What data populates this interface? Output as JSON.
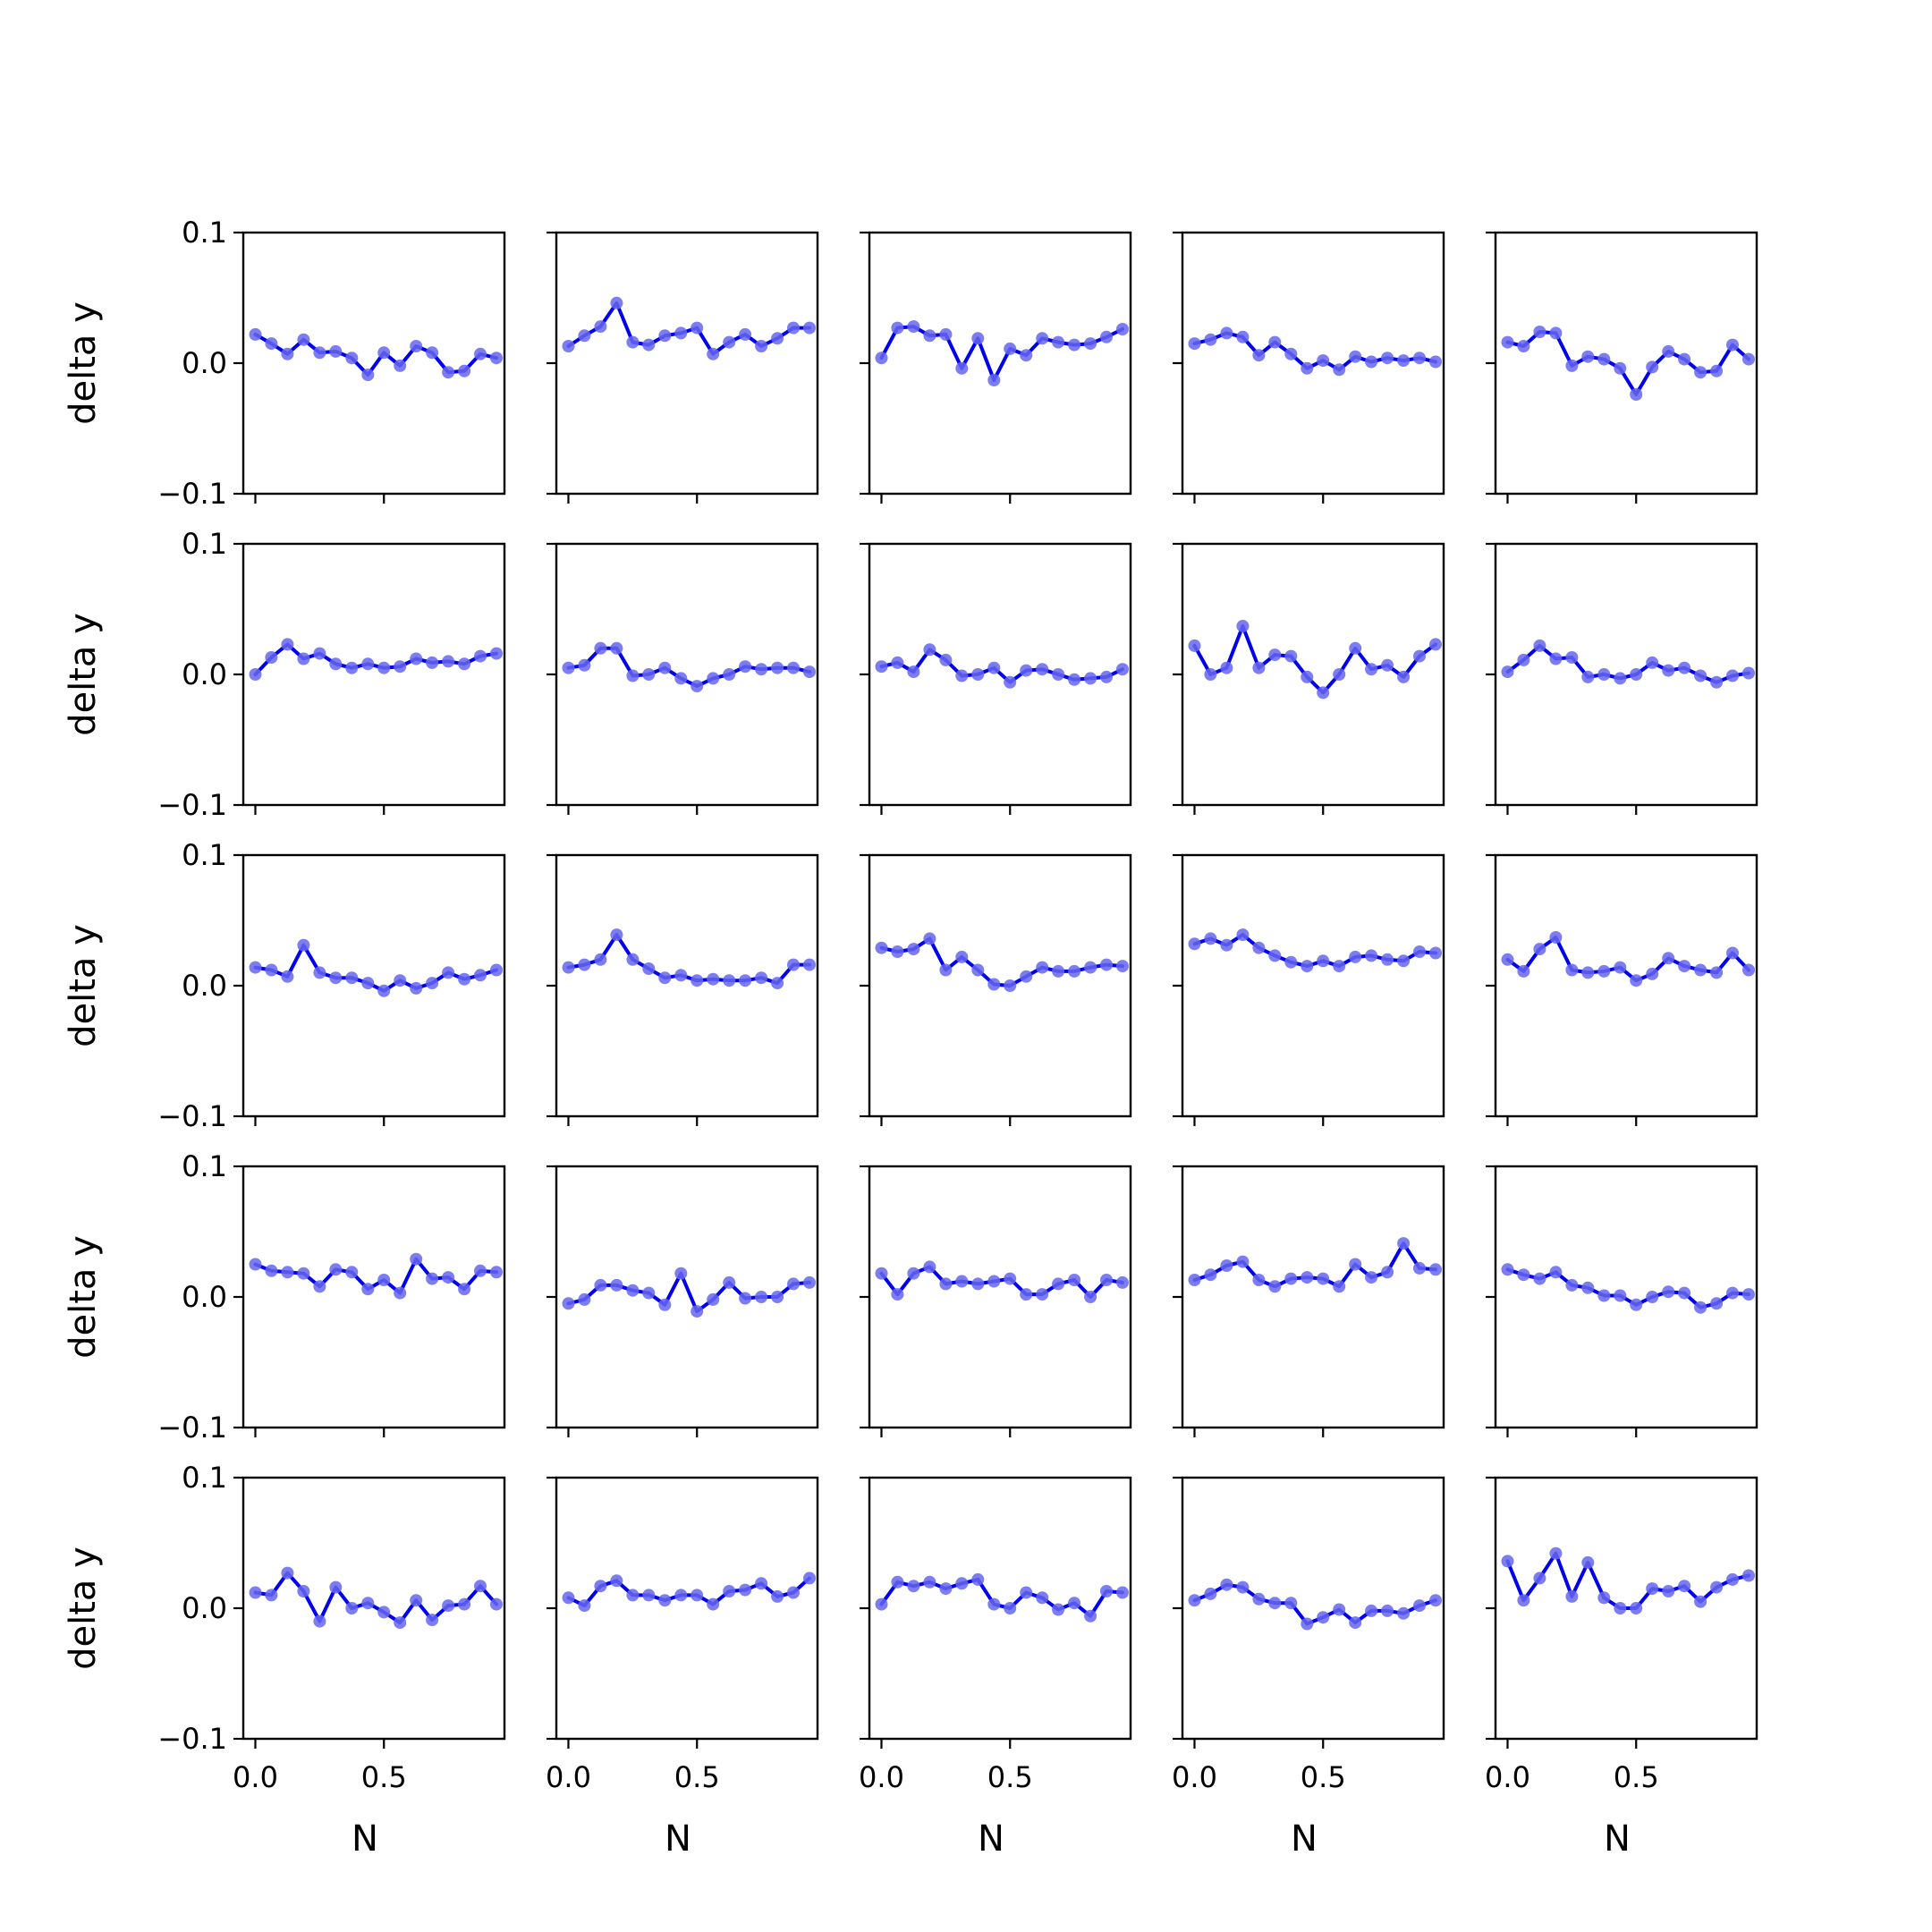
{
  "chart_data": {
    "type": "line",
    "layout": "5x5 grid of small multiples",
    "x": [
      0.0,
      0.0625,
      0.125,
      0.1875,
      0.25,
      0.3125,
      0.375,
      0.4375,
      0.5,
      0.5625,
      0.625,
      0.6875,
      0.75,
      0.8125,
      0.875,
      0.9375
    ],
    "xlabel": "N",
    "ylabel": "delta y",
    "ylim": [
      -0.1,
      0.1
    ],
    "xlim": [
      -0.04688,
      0.96875
    ],
    "y_ticks": [
      -0.1,
      0.0,
      0.1
    ],
    "y_tick_labels": [
      "−0.1",
      "0.0",
      "0.1"
    ],
    "x_ticks": [
      0.0,
      0.5
    ],
    "x_tick_labels": [
      "0.0",
      "0.5"
    ],
    "line_color": "#0000ee",
    "marker_color": "#6666f0",
    "grid": false,
    "panels": [
      [
        0.022,
        0.015,
        0.007,
        0.018,
        0.008,
        0.009,
        0.004,
        -0.009,
        0.008,
        -0.002,
        0.013,
        0.008,
        -0.007,
        -0.006,
        0.007,
        0.004
      ],
      [
        0.013,
        0.021,
        0.028,
        0.046,
        0.016,
        0.014,
        0.021,
        0.023,
        0.027,
        0.007,
        0.016,
        0.022,
        0.013,
        0.019,
        0.027,
        0.027
      ],
      [
        0.004,
        0.027,
        0.028,
        0.021,
        0.022,
        -0.004,
        0.019,
        -0.013,
        0.011,
        0.006,
        0.019,
        0.016,
        0.014,
        0.015,
        0.02,
        0.026
      ],
      [
        0.015,
        0.018,
        0.023,
        0.02,
        0.006,
        0.016,
        0.007,
        -0.004,
        0.002,
        -0.005,
        0.005,
        0.001,
        0.004,
        0.002,
        0.004,
        0.001
      ],
      [
        0.016,
        0.013,
        0.024,
        0.023,
        -0.002,
        0.005,
        0.003,
        -0.004,
        -0.024,
        -0.003,
        0.009,
        0.003,
        -0.007,
        -0.006,
        0.014,
        0.003
      ],
      [
        0.0,
        0.013,
        0.023,
        0.012,
        0.016,
        0.008,
        0.005,
        0.008,
        0.005,
        0.006,
        0.012,
        0.009,
        0.01,
        0.008,
        0.014,
        0.016
      ],
      [
        0.005,
        0.007,
        0.02,
        0.02,
        -0.001,
        0.0,
        0.005,
        -0.003,
        -0.009,
        -0.003,
        0.0,
        0.006,
        0.004,
        0.005,
        0.005,
        0.002
      ],
      [
        0.006,
        0.009,
        0.002,
        0.019,
        0.011,
        -0.001,
        0.0,
        0.005,
        -0.006,
        0.003,
        0.004,
        0.0,
        -0.004,
        -0.003,
        -0.002,
        0.004
      ],
      [
        0.022,
        0.0,
        0.005,
        0.037,
        0.005,
        0.015,
        0.014,
        -0.002,
        -0.014,
        0.0,
        0.02,
        0.004,
        0.007,
        -0.002,
        0.014,
        0.023
      ],
      [
        0.002,
        0.011,
        0.022,
        0.012,
        0.013,
        -0.002,
        0.0,
        -0.003,
        0.0,
        0.009,
        0.003,
        0.005,
        -0.001,
        -0.006,
        -0.001,
        0.001
      ],
      [
        0.014,
        0.012,
        0.007,
        0.031,
        0.01,
        0.006,
        0.006,
        0.002,
        -0.004,
        0.004,
        -0.002,
        0.002,
        0.01,
        0.005,
        0.008,
        0.012
      ],
      [
        0.014,
        0.016,
        0.02,
        0.039,
        0.02,
        0.013,
        0.006,
        0.008,
        0.004,
        0.005,
        0.004,
        0.004,
        0.006,
        0.002,
        0.016,
        0.016
      ],
      [
        0.029,
        0.026,
        0.028,
        0.036,
        0.012,
        0.022,
        0.012,
        0.001,
        0.0,
        0.007,
        0.014,
        0.011,
        0.011,
        0.014,
        0.016,
        0.015
      ],
      [
        0.032,
        0.036,
        0.031,
        0.039,
        0.029,
        0.023,
        0.018,
        0.015,
        0.019,
        0.015,
        0.022,
        0.023,
        0.02,
        0.019,
        0.026,
        0.025
      ],
      [
        0.02,
        0.011,
        0.028,
        0.037,
        0.012,
        0.01,
        0.011,
        0.014,
        0.004,
        0.009,
        0.021,
        0.015,
        0.012,
        0.01,
        0.025,
        0.012
      ],
      [
        0.025,
        0.02,
        0.019,
        0.018,
        0.008,
        0.021,
        0.019,
        0.006,
        0.013,
        0.003,
        0.029,
        0.014,
        0.015,
        0.006,
        0.02,
        0.019
      ],
      [
        -0.005,
        -0.002,
        0.009,
        0.009,
        0.005,
        0.003,
        -0.006,
        0.018,
        -0.011,
        -0.002,
        0.011,
        -0.001,
        0.0,
        0.0,
        0.01,
        0.011
      ],
      [
        0.018,
        0.002,
        0.018,
        0.023,
        0.01,
        0.012,
        0.01,
        0.012,
        0.014,
        0.002,
        0.002,
        0.01,
        0.013,
        0.0,
        0.013,
        0.011
      ],
      [
        0.013,
        0.017,
        0.024,
        0.027,
        0.013,
        0.008,
        0.014,
        0.015,
        0.014,
        0.008,
        0.025,
        0.015,
        0.019,
        0.041,
        0.022,
        0.021
      ],
      [
        0.021,
        0.017,
        0.014,
        0.019,
        0.009,
        0.007,
        0.001,
        0.001,
        -0.006,
        0.0,
        0.004,
        0.003,
        -0.008,
        -0.005,
        0.003,
        0.002
      ]
    ],
    "panels_row5": [
      [
        0.012,
        0.01,
        0.027,
        0.013,
        -0.01,
        0.016,
        0.0,
        0.004,
        -0.003,
        -0.011,
        0.006,
        -0.009,
        0.002,
        0.003,
        0.017,
        0.003
      ],
      [
        0.008,
        0.002,
        0.017,
        0.021,
        0.01,
        0.01,
        0.006,
        0.01,
        0.01,
        0.003,
        0.013,
        0.014,
        0.019,
        0.009,
        0.012,
        0.023
      ],
      [
        0.003,
        0.02,
        0.017,
        0.02,
        0.015,
        0.019,
        0.022,
        0.003,
        0.0,
        0.012,
        0.008,
        -0.001,
        0.004,
        -0.006,
        0.013,
        0.012
      ],
      [
        0.006,
        0.011,
        0.018,
        0.016,
        0.007,
        0.004,
        0.004,
        -0.012,
        -0.007,
        -0.001,
        -0.011,
        -0.002,
        -0.002,
        -0.004,
        0.002,
        0.006
      ],
      [
        0.036,
        0.006,
        0.023,
        0.042,
        0.009,
        0.035,
        0.008,
        0.0,
        0.0,
        0.015,
        0.013,
        0.017,
        0.005,
        0.016,
        0.022,
        0.025
      ]
    ]
  }
}
